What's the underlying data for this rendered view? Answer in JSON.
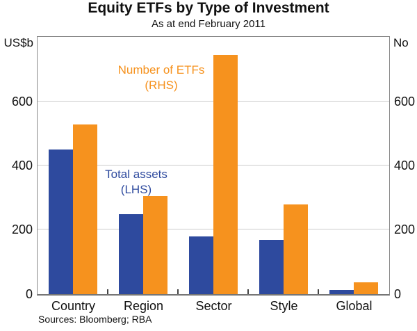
{
  "title": "Equity ETFs by Type of Investment",
  "subtitle": "As at end February 2011",
  "axes": {
    "left_unit": "US$b",
    "right_unit": "No"
  },
  "annotations": {
    "etfs_line1": "Number of ETFs",
    "etfs_line2": "(RHS)",
    "assets_line1": "Total assets",
    "assets_line2": "(LHS)"
  },
  "source_note": "Sources: Bloomberg; RBA",
  "colors": {
    "assets_blue": "#2E4A9E",
    "etfs_orange": "#F6921E",
    "gridline": "#CBCBCB",
    "axis_border": "#8A8A8A",
    "text": "#111111"
  },
  "chart_data": {
    "type": "bar",
    "title": "Equity ETFs by Type of Investment",
    "subtitle": "As at end February 2011",
    "categories": [
      "Country",
      "Region",
      "Sector",
      "Style",
      "Global"
    ],
    "series": [
      {
        "name": "Total assets (LHS)",
        "axis": "left",
        "color_key": "assets_blue",
        "values": [
          450,
          250,
          180,
          170,
          13
        ]
      },
      {
        "name": "Number of ETFs (RHS)",
        "axis": "right",
        "color_key": "etfs_orange",
        "values": [
          530,
          305,
          745,
          280,
          36
        ]
      }
    ],
    "left_axis": {
      "label": "US$b",
      "min": 0,
      "max": 800,
      "ticks": [
        0,
        200,
        400,
        600
      ]
    },
    "right_axis": {
      "label": "No",
      "min": 0,
      "max": 800,
      "ticks": [
        0,
        200,
        400,
        600
      ]
    },
    "gridlines": [
      200,
      400,
      600
    ],
    "grid": true,
    "legend_position": "in-plot text annotations",
    "source": "Sources: Bloomberg; RBA"
  }
}
